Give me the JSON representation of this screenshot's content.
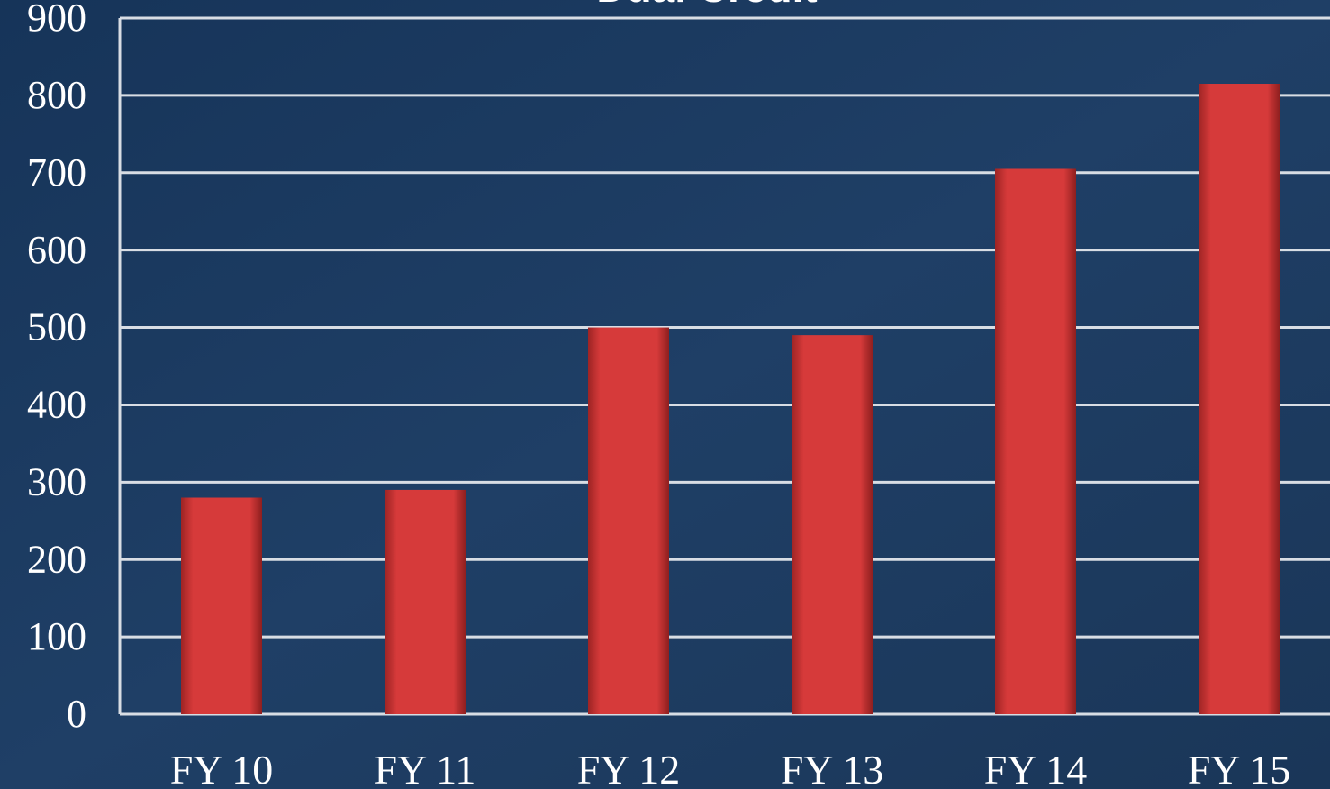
{
  "chart_data": {
    "type": "bar",
    "title": "Dual Credit",
    "categories": [
      "FY 10",
      "FY 11",
      "FY 12",
      "FY 13",
      "FY 14",
      "FY 15"
    ],
    "values": [
      280,
      290,
      500,
      490,
      705,
      815
    ],
    "color": "#d63a3a",
    "ylim": [
      0,
      900
    ],
    "yticks": [
      0,
      100,
      200,
      300,
      400,
      500,
      600,
      700,
      800,
      900
    ],
    "grid": true
  }
}
